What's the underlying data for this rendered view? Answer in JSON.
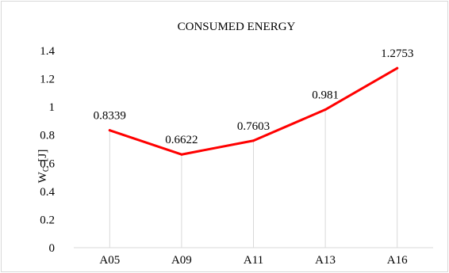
{
  "chart_data": {
    "type": "line",
    "title": "CONSUMED ENERGY",
    "ylabel_main": "W",
    "ylabel_sub": "C",
    "ylabel_unit": "[J]",
    "xlabel": "",
    "categories": [
      "A05",
      "A09",
      "A11",
      "A13",
      "A16"
    ],
    "series": [
      {
        "values": [
          0.8339,
          0.6622,
          0.7603,
          0.981,
          1.2753
        ],
        "color": "#ff0000"
      }
    ],
    "data_labels": [
      "0.8339",
      "0.6622",
      "0.7603",
      "0.981",
      "1.2753"
    ],
    "ylim": [
      0,
      1.4
    ],
    "yticks": [
      0,
      0.2,
      0.4,
      0.6,
      0.8,
      1,
      1.2,
      1.4
    ],
    "ytick_labels": [
      "0",
      "0.2",
      "0.4",
      "0.6",
      "0.8",
      "1",
      "1.2",
      "1.4"
    ],
    "drop_lines": true,
    "grid": false,
    "legend": "none"
  }
}
